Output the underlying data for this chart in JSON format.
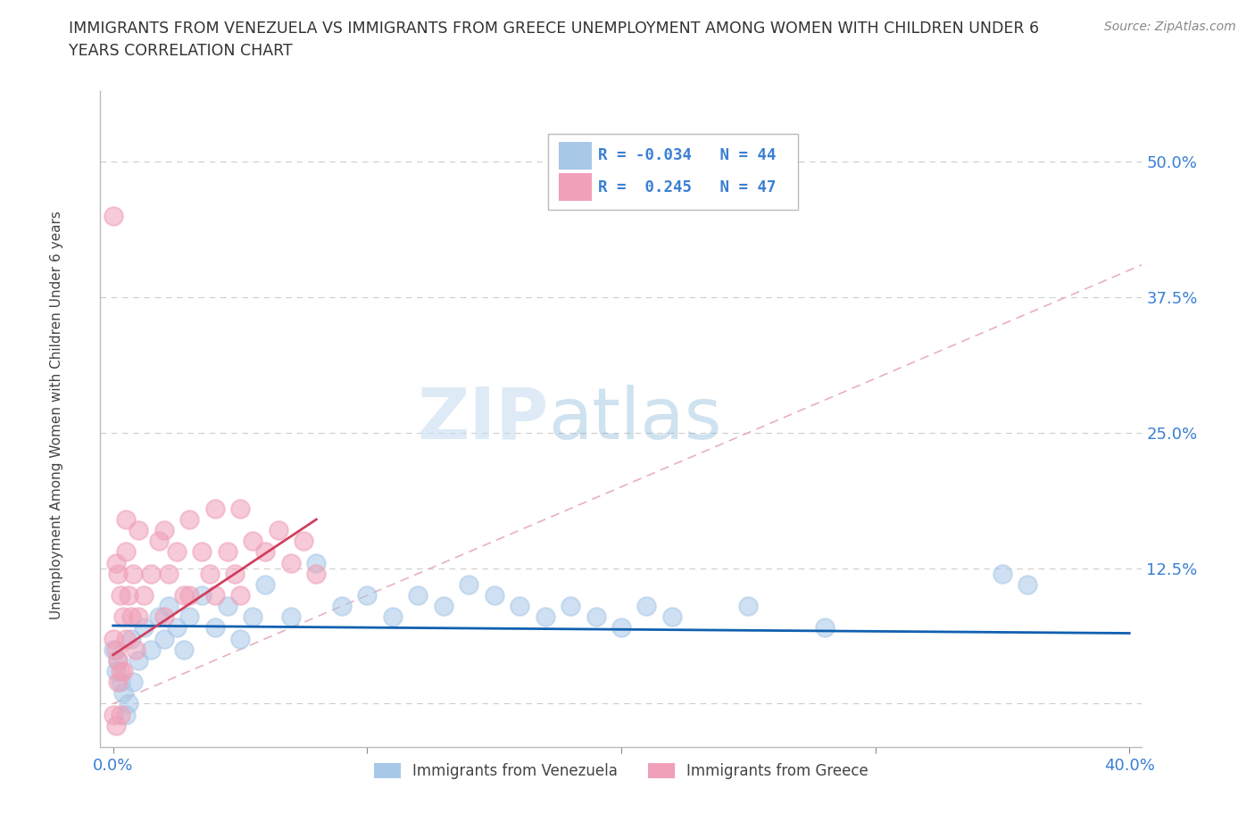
{
  "title_line1": "IMMIGRANTS FROM VENEZUELA VS IMMIGRANTS FROM GREECE UNEMPLOYMENT AMONG WOMEN WITH CHILDREN UNDER 6",
  "title_line2": "YEARS CORRELATION CHART",
  "source": "Source: ZipAtlas.com",
  "ylabel": "Unemployment Among Women with Children Under 6 years",
  "xlim": [
    -0.005,
    0.405
  ],
  "ylim": [
    -0.04,
    0.565
  ],
  "yticks": [
    0.0,
    0.125,
    0.25,
    0.375,
    0.5
  ],
  "ytick_labels": [
    "",
    "12.5%",
    "25.0%",
    "37.5%",
    "50.0%"
  ],
  "xticks": [
    0.0,
    0.1,
    0.2,
    0.3,
    0.4
  ],
  "xtick_labels": [
    "0.0%",
    "",
    "",
    "",
    "40.0%"
  ],
  "venezuela_color": "#a8c8e8",
  "greece_color": "#f0a0b8",
  "venezuela_line_color": "#1060b0",
  "greece_line_color": "#d04060",
  "diag_line_color": "#e8b0c0",
  "R_venezuela": -0.034,
  "N_venezuela": 44,
  "R_greece": 0.245,
  "N_greece": 47,
  "watermark_zip": "ZIP",
  "watermark_atlas": "atlas",
  "legend_box_color": "#ffffff",
  "legend_border_color": "#cccccc",
  "venezuela_x": [
    0.0,
    0.001,
    0.002,
    0.003,
    0.004,
    0.005,
    0.006,
    0.007,
    0.008,
    0.01,
    0.012,
    0.015,
    0.018,
    0.02,
    0.022,
    0.025,
    0.028,
    0.03,
    0.035,
    0.04,
    0.045,
    0.05,
    0.055,
    0.06,
    0.07,
    0.08,
    0.09,
    0.1,
    0.11,
    0.12,
    0.13,
    0.14,
    0.15,
    0.16,
    0.17,
    0.18,
    0.19,
    0.2,
    0.21,
    0.22,
    0.25,
    0.28,
    0.35,
    0.36
  ],
  "venezuela_y": [
    0.05,
    0.03,
    0.04,
    0.02,
    0.01,
    -0.01,
    0.0,
    0.06,
    0.02,
    0.04,
    0.07,
    0.05,
    0.08,
    0.06,
    0.09,
    0.07,
    0.05,
    0.08,
    0.1,
    0.07,
    0.09,
    0.06,
    0.08,
    0.11,
    0.08,
    0.13,
    0.09,
    0.1,
    0.08,
    0.1,
    0.09,
    0.11,
    0.1,
    0.09,
    0.08,
    0.09,
    0.08,
    0.07,
    0.09,
    0.08,
    0.09,
    0.07,
    0.12,
    0.11
  ],
  "greece_x": [
    0.0,
    0.0,
    0.001,
    0.001,
    0.002,
    0.002,
    0.003,
    0.003,
    0.004,
    0.005,
    0.005,
    0.006,
    0.007,
    0.008,
    0.009,
    0.01,
    0.01,
    0.012,
    0.015,
    0.018,
    0.02,
    0.02,
    0.022,
    0.025,
    0.028,
    0.03,
    0.03,
    0.035,
    0.038,
    0.04,
    0.04,
    0.045,
    0.048,
    0.05,
    0.05,
    0.055,
    0.06,
    0.065,
    0.07,
    0.075,
    0.08,
    0.0,
    0.001,
    0.002,
    0.003,
    0.004,
    0.005
  ],
  "greece_y": [
    0.06,
    -0.01,
    0.05,
    0.13,
    0.04,
    0.12,
    0.03,
    0.1,
    0.08,
    0.06,
    0.14,
    0.1,
    0.08,
    0.12,
    0.05,
    0.08,
    0.16,
    0.1,
    0.12,
    0.15,
    0.08,
    0.16,
    0.12,
    0.14,
    0.1,
    0.1,
    0.17,
    0.14,
    0.12,
    0.1,
    0.18,
    0.14,
    0.12,
    0.1,
    0.18,
    0.15,
    0.14,
    0.16,
    0.13,
    0.15,
    0.12,
    0.45,
    -0.02,
    0.02,
    -0.01,
    0.03,
    0.17
  ],
  "ven_trend_x": [
    0.0,
    0.4
  ],
  "ven_trend_y": [
    0.072,
    0.065
  ],
  "gre_trend_x": [
    0.0,
    0.08
  ],
  "gre_trend_y": [
    0.045,
    0.17
  ]
}
